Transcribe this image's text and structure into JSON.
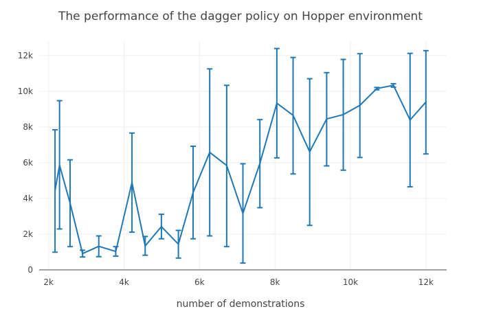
{
  "chart_data": {
    "type": "line",
    "title": "The performance of the dagger policy on Hopper environment",
    "xlabel": "number of demonstrations",
    "ylabel": "",
    "xlim": [
      1750,
      12550
    ],
    "ylim": [
      0,
      12800
    ],
    "x_ticks": [
      {
        "value": 2000,
        "label": "2k"
      },
      {
        "value": 4000,
        "label": "4k"
      },
      {
        "value": 6000,
        "label": "6k"
      },
      {
        "value": 8000,
        "label": "8k"
      },
      {
        "value": 10000,
        "label": "10k"
      },
      {
        "value": 12000,
        "label": "12k"
      }
    ],
    "y_ticks": [
      {
        "value": 0,
        "label": "0"
      },
      {
        "value": 2000,
        "label": "2k"
      },
      {
        "value": 4000,
        "label": "4k"
      },
      {
        "value": 6000,
        "label": "6k"
      },
      {
        "value": 8000,
        "label": "8k"
      },
      {
        "value": 10000,
        "label": "10k"
      },
      {
        "value": 12000,
        "label": "12k"
      }
    ],
    "grid": true,
    "legend": "none",
    "color": "#1f77b4",
    "series": [
      {
        "points": [
          {
            "x": 2170,
            "y": 4430,
            "lo": 990,
            "hi": 7840
          },
          {
            "x": 2290,
            "y": 5860,
            "lo": 2290,
            "hi": 9470
          },
          {
            "x": 2570,
            "y": 3730,
            "lo": 1300,
            "hi": 6160
          },
          {
            "x": 2900,
            "y": 910,
            "lo": 720,
            "hi": 1100
          },
          {
            "x": 3330,
            "y": 1320,
            "lo": 740,
            "hi": 1900
          },
          {
            "x": 3780,
            "y": 1030,
            "lo": 770,
            "hi": 1300
          },
          {
            "x": 4210,
            "y": 4890,
            "lo": 2110,
            "hi": 7660
          },
          {
            "x": 4560,
            "y": 1340,
            "lo": 820,
            "hi": 1870
          },
          {
            "x": 4990,
            "y": 2420,
            "lo": 1740,
            "hi": 3110
          },
          {
            "x": 5440,
            "y": 1440,
            "lo": 660,
            "hi": 2210
          },
          {
            "x": 5830,
            "y": 4330,
            "lo": 1740,
            "hi": 6920
          },
          {
            "x": 6270,
            "y": 6580,
            "lo": 1900,
            "hi": 11250
          },
          {
            "x": 6720,
            "y": 5840,
            "lo": 1300,
            "hi": 10330
          },
          {
            "x": 7150,
            "y": 3160,
            "lo": 380,
            "hi": 5940
          },
          {
            "x": 7600,
            "y": 5960,
            "lo": 3480,
            "hi": 8410
          },
          {
            "x": 8050,
            "y": 9330,
            "lo": 6270,
            "hi": 12390
          },
          {
            "x": 8480,
            "y": 8650,
            "lo": 5370,
            "hi": 11890
          },
          {
            "x": 8920,
            "y": 6610,
            "lo": 2490,
            "hi": 10700
          },
          {
            "x": 9370,
            "y": 8450,
            "lo": 5820,
            "hi": 11040
          },
          {
            "x": 9810,
            "y": 8690,
            "lo": 5580,
            "hi": 11780
          },
          {
            "x": 10250,
            "y": 9210,
            "lo": 6290,
            "hi": 12100
          },
          {
            "x": 10700,
            "y": 10150,
            "lo": 10080,
            "hi": 10210
          },
          {
            "x": 11140,
            "y": 10330,
            "lo": 10230,
            "hi": 10420
          },
          {
            "x": 11580,
            "y": 8390,
            "lo": 4650,
            "hi": 12120
          },
          {
            "x": 12000,
            "y": 9390,
            "lo": 6490,
            "hi": 12270
          }
        ]
      }
    ]
  }
}
